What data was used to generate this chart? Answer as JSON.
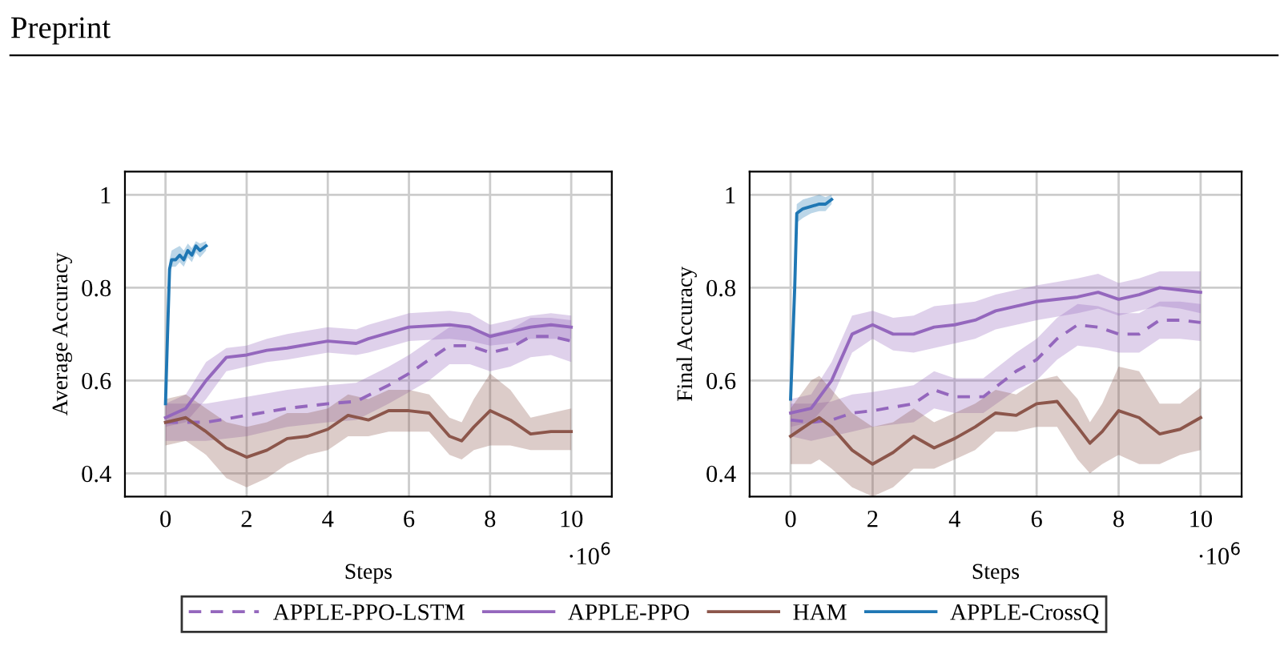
{
  "chart_data": [
    {
      "type": "line",
      "xlabel": "Steps",
      "ylabel": "Average Accuracy",
      "xlim": [
        -1,
        11
      ],
      "ylim": [
        0.35,
        1.05
      ],
      "xticks": [
        0,
        2,
        4,
        6,
        8,
        10
      ],
      "yticks": [
        0.4,
        0.6,
        0.8,
        1
      ],
      "grid": true,
      "legend": "bottom",
      "annotations": [
        "Preprint",
        "·10$^{6}$"
      ],
      "series": [
        {
          "name": "APPLE-PPO-LSTM",
          "color": "#9467bd",
          "line_style": "dashed",
          "x": [
            0,
            1,
            2,
            3,
            4,
            4.7,
            5.5,
            6,
            6.5,
            7,
            7.5,
            8,
            8.5,
            9,
            9.5,
            10
          ],
          "values": [
            0.51,
            0.51,
            0.525,
            0.54,
            0.55,
            0.555,
            0.59,
            0.615,
            0.645,
            0.675,
            0.675,
            0.66,
            0.67,
            0.695,
            0.695,
            0.685
          ],
          "lower": [
            0.47,
            0.47,
            0.48,
            0.5,
            0.51,
            0.515,
            0.55,
            0.575,
            0.6,
            0.635,
            0.635,
            0.62,
            0.63,
            0.65,
            0.655,
            0.64
          ],
          "upper": [
            0.55,
            0.55,
            0.565,
            0.58,
            0.59,
            0.595,
            0.63,
            0.655,
            0.685,
            0.715,
            0.715,
            0.7,
            0.71,
            0.735,
            0.735,
            0.73
          ]
        },
        {
          "name": "APPLE-PPO",
          "color": "#9467bd",
          "x": [
            0,
            0.5,
            1,
            1.5,
            2,
            2.5,
            3,
            4,
            4.7,
            5,
            6,
            7,
            7.5,
            8,
            8.5,
            9,
            9.5,
            10
          ],
          "values": [
            0.52,
            0.54,
            0.6,
            0.65,
            0.655,
            0.665,
            0.67,
            0.685,
            0.68,
            0.69,
            0.715,
            0.72,
            0.715,
            0.695,
            0.705,
            0.715,
            0.72,
            0.715
          ],
          "lower": [
            0.5,
            0.51,
            0.56,
            0.62,
            0.63,
            0.64,
            0.645,
            0.66,
            0.655,
            0.66,
            0.685,
            0.69,
            0.685,
            0.675,
            0.68,
            0.69,
            0.69,
            0.69
          ],
          "upper": [
            0.55,
            0.57,
            0.64,
            0.67,
            0.675,
            0.69,
            0.7,
            0.715,
            0.71,
            0.72,
            0.745,
            0.75,
            0.745,
            0.72,
            0.73,
            0.74,
            0.745,
            0.74
          ]
        },
        {
          "name": "HAM",
          "color": "#8c564b",
          "x": [
            0,
            0.5,
            1,
            1.5,
            2,
            2.5,
            3,
            3.5,
            4,
            4.5,
            5,
            5.5,
            6,
            6.5,
            7,
            7.3,
            7.6,
            8,
            8.5,
            9,
            9.5,
            10
          ],
          "values": [
            0.51,
            0.52,
            0.49,
            0.455,
            0.435,
            0.45,
            0.475,
            0.48,
            0.495,
            0.525,
            0.515,
            0.535,
            0.535,
            0.53,
            0.48,
            0.47,
            0.5,
            0.535,
            0.515,
            0.485,
            0.49,
            0.49
          ],
          "lower": [
            0.46,
            0.47,
            0.44,
            0.39,
            0.37,
            0.39,
            0.42,
            0.44,
            0.45,
            0.48,
            0.48,
            0.49,
            0.49,
            0.49,
            0.44,
            0.43,
            0.45,
            0.46,
            0.46,
            0.45,
            0.45,
            0.45
          ],
          "upper": [
            0.56,
            0.57,
            0.54,
            0.51,
            0.5,
            0.51,
            0.53,
            0.53,
            0.54,
            0.57,
            0.56,
            0.58,
            0.58,
            0.57,
            0.52,
            0.51,
            0.56,
            0.615,
            0.58,
            0.52,
            0.53,
            0.54
          ]
        },
        {
          "name": "APPLE-CrossQ",
          "color": "#1f77b4",
          "x": [
            0,
            0.05,
            0.1,
            0.15,
            0.25,
            0.35,
            0.45,
            0.55,
            0.65,
            0.75,
            0.85,
            1.0
          ],
          "values": [
            0.55,
            0.7,
            0.84,
            0.86,
            0.86,
            0.87,
            0.86,
            0.88,
            0.87,
            0.89,
            0.88,
            0.89
          ],
          "lower": [
            0.54,
            0.68,
            0.82,
            0.845,
            0.845,
            0.855,
            0.845,
            0.865,
            0.855,
            0.875,
            0.865,
            0.88
          ],
          "upper": [
            0.56,
            0.72,
            0.86,
            0.88,
            0.885,
            0.89,
            0.88,
            0.895,
            0.885,
            0.9,
            0.895,
            0.9
          ]
        }
      ]
    },
    {
      "type": "line",
      "xlabel": "Steps",
      "ylabel": "Final Accuracy",
      "xlim": [
        -1,
        11
      ],
      "ylim": [
        0.35,
        1.05
      ],
      "xticks": [
        0,
        2,
        4,
        6,
        8,
        10
      ],
      "yticks": [
        0.4,
        0.6,
        0.8,
        1
      ],
      "grid": true,
      "annotations": [
        "·10$^{6}$"
      ],
      "series": [
        {
          "name": "APPLE-PPO-LSTM",
          "color": "#9467bd",
          "line_style": "dashed",
          "x": [
            0,
            0.5,
            1,
            1.5,
            2,
            3,
            3.5,
            4,
            4.7,
            5.5,
            6,
            6.5,
            7,
            7.5,
            8,
            8.5,
            9,
            9.5,
            10
          ],
          "values": [
            0.515,
            0.51,
            0.515,
            0.53,
            0.535,
            0.55,
            0.58,
            0.565,
            0.565,
            0.62,
            0.645,
            0.69,
            0.72,
            0.715,
            0.7,
            0.7,
            0.73,
            0.73,
            0.725
          ],
          "lower": [
            0.48,
            0.47,
            0.48,
            0.49,
            0.5,
            0.51,
            0.54,
            0.53,
            0.53,
            0.58,
            0.6,
            0.645,
            0.675,
            0.67,
            0.66,
            0.66,
            0.69,
            0.69,
            0.685
          ],
          "upper": [
            0.55,
            0.55,
            0.555,
            0.57,
            0.575,
            0.59,
            0.62,
            0.605,
            0.605,
            0.66,
            0.69,
            0.735,
            0.765,
            0.76,
            0.745,
            0.745,
            0.77,
            0.77,
            0.765
          ]
        },
        {
          "name": "APPLE-PPO",
          "color": "#9467bd",
          "x": [
            0,
            0.5,
            1,
            1.5,
            2,
            2.5,
            3,
            3.5,
            4,
            4.5,
            5,
            6,
            7,
            7.5,
            8,
            8.5,
            9,
            9.5,
            10
          ],
          "values": [
            0.53,
            0.54,
            0.6,
            0.7,
            0.72,
            0.7,
            0.7,
            0.715,
            0.72,
            0.73,
            0.75,
            0.77,
            0.78,
            0.79,
            0.775,
            0.785,
            0.8,
            0.795,
            0.79
          ],
          "lower": [
            0.5,
            0.51,
            0.56,
            0.66,
            0.69,
            0.665,
            0.66,
            0.67,
            0.68,
            0.69,
            0.71,
            0.73,
            0.745,
            0.755,
            0.74,
            0.75,
            0.76,
            0.755,
            0.745
          ],
          "upper": [
            0.56,
            0.57,
            0.64,
            0.74,
            0.75,
            0.735,
            0.74,
            0.76,
            0.765,
            0.77,
            0.785,
            0.805,
            0.82,
            0.83,
            0.81,
            0.82,
            0.835,
            0.835,
            0.835
          ]
        },
        {
          "name": "HAM",
          "color": "#8c564b",
          "x": [
            0,
            0.5,
            0.7,
            1,
            1.5,
            2,
            2.5,
            3,
            3.5,
            4,
            4.5,
            5,
            5.5,
            6,
            6.5,
            7,
            7.3,
            7.6,
            8,
            8.5,
            9,
            9.5,
            10
          ],
          "values": [
            0.48,
            0.51,
            0.52,
            0.5,
            0.45,
            0.42,
            0.445,
            0.48,
            0.455,
            0.475,
            0.5,
            0.53,
            0.525,
            0.55,
            0.555,
            0.5,
            0.465,
            0.49,
            0.535,
            0.52,
            0.485,
            0.495,
            0.52
          ],
          "lower": [
            0.42,
            0.42,
            0.43,
            0.41,
            0.37,
            0.35,
            0.37,
            0.41,
            0.41,
            0.43,
            0.45,
            0.49,
            0.49,
            0.5,
            0.5,
            0.43,
            0.4,
            0.42,
            0.44,
            0.42,
            0.42,
            0.44,
            0.45
          ],
          "upper": [
            0.54,
            0.6,
            0.61,
            0.58,
            0.53,
            0.5,
            0.51,
            0.54,
            0.51,
            0.53,
            0.55,
            0.58,
            0.57,
            0.6,
            0.61,
            0.56,
            0.51,
            0.55,
            0.63,
            0.62,
            0.55,
            0.55,
            0.585
          ]
        },
        {
          "name": "APPLE-CrossQ",
          "color": "#1f77b4",
          "x": [
            0,
            0.1,
            0.15,
            0.3,
            0.5,
            0.7,
            0.85,
            1.0
          ],
          "values": [
            0.56,
            0.8,
            0.96,
            0.97,
            0.975,
            0.98,
            0.98,
            0.99
          ],
          "lower": [
            0.55,
            0.78,
            0.94,
            0.95,
            0.96,
            0.965,
            0.965,
            0.98
          ],
          "upper": [
            0.57,
            0.82,
            0.98,
            0.99,
            0.995,
            1.0,
            0.995,
            1.0
          ]
        }
      ]
    }
  ]
}
